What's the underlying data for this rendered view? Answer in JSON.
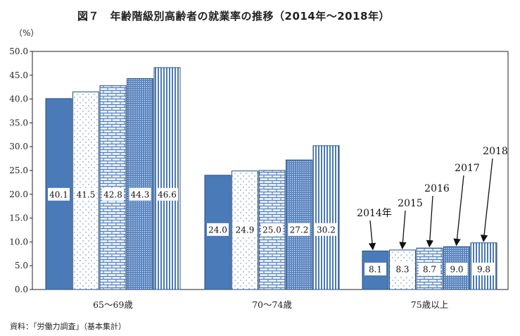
{
  "title": "図７　年齢階級別高齢者の就業率の推移（2014年～2018年）",
  "y_unit": "（%）",
  "source": "資料：「労働力調査」（基本集計）",
  "chart_data": {
    "type": "bar",
    "categories": [
      "65～69歳",
      "70～74歳",
      "75歳以上"
    ],
    "series": [
      {
        "name": "2014年",
        "values": [
          40.1,
          24.0,
          8.1
        ],
        "pattern": "solid"
      },
      {
        "name": "2015",
        "values": [
          41.5,
          24.9,
          8.3
        ],
        "pattern": "dots"
      },
      {
        "name": "2016",
        "values": [
          42.8,
          25.0,
          8.7
        ],
        "pattern": "bricks"
      },
      {
        "name": "2017",
        "values": [
          44.3,
          27.2,
          9.0
        ],
        "pattern": "dense-dots"
      },
      {
        "name": "2018",
        "values": [
          46.6,
          30.2,
          9.8
        ],
        "pattern": "vstripes"
      }
    ],
    "value_labels": [
      [
        "40.1",
        "41.5",
        "42.8",
        "44.3",
        "46.6"
      ],
      [
        "24.0",
        "24.9",
        "25.0",
        "27.2",
        "30.2"
      ],
      [
        "8.1",
        "8.3",
        "8.7",
        "9.0",
        "9.8"
      ]
    ],
    "ylim": [
      0,
      50
    ],
    "yticks": [
      "0.0",
      "5.0",
      "10.0",
      "15.0",
      "20.0",
      "25.0",
      "30.0",
      "35.0",
      "40.0",
      "45.0",
      "50.0"
    ],
    "grid": false,
    "legend": "year labels with arrows pointing to the 75歳以上 bars",
    "colors": {
      "accent": "#4a7ab8",
      "edge": "#2b4f80"
    }
  }
}
